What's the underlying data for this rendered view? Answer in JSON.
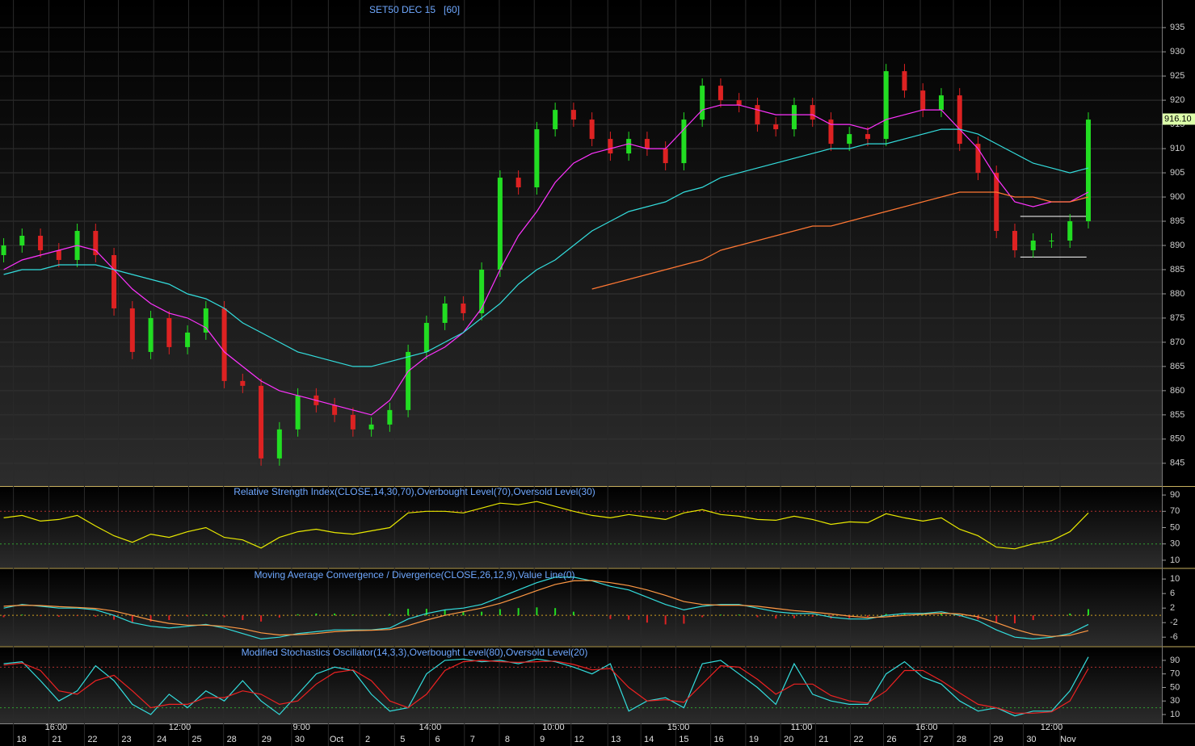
{
  "chart_data": [
    {
      "type": "candlestick",
      "title": "SET50 DEC 15   [60]",
      "xlim": [
        -0.2,
        63
      ],
      "ylim": [
        840.3,
        940.7
      ],
      "yticks": [
        845,
        850,
        855,
        860,
        865,
        870,
        875,
        880,
        885,
        890,
        895,
        900,
        905,
        910,
        915,
        920,
        925,
        930,
        935
      ],
      "grid": true,
      "up_color": "#22dd22",
      "down_color": "#dd2222",
      "open": [
        888,
        890,
        892,
        889,
        887,
        893,
        888,
        877,
        868,
        875,
        869,
        872,
        877,
        862,
        861,
        846,
        852,
        859,
        857,
        855,
        852,
        853,
        856,
        868,
        874,
        878,
        876,
        885,
        904,
        902,
        914,
        918,
        916,
        912,
        909,
        912,
        910,
        907,
        916,
        923,
        920,
        919,
        915,
        914,
        919,
        916,
        911,
        913,
        912,
        926,
        922,
        918,
        921,
        911,
        905,
        893,
        889,
        891,
        891,
        895
      ],
      "high": [
        891.5,
        893.5,
        893.5,
        890.5,
        894.5,
        894.5,
        889.5,
        878.5,
        876.5,
        876.5,
        873.5,
        878.5,
        878.5,
        863.5,
        862.5,
        853.5,
        860.5,
        860.5,
        858.5,
        856.5,
        854.5,
        857.5,
        869.5,
        875.5,
        879.5,
        879.5,
        886.5,
        905.5,
        905.5,
        915.5,
        919.5,
        919.5,
        917.5,
        913.5,
        913.5,
        913.5,
        911.5,
        917.5,
        924.5,
        924.5,
        921.5,
        920.5,
        916.5,
        920.5,
        920.5,
        917.5,
        914.5,
        914.5,
        927.5,
        927.5,
        923.5,
        922.5,
        922.5,
        912.5,
        906.5,
        894.5,
        892.5,
        892.5,
        896.5,
        917.5
      ],
      "low": [
        886.5,
        888.5,
        887.5,
        885.5,
        885.5,
        886.5,
        875.5,
        866.5,
        866.5,
        867.5,
        867.5,
        870.5,
        860.5,
        859.5,
        844.5,
        844.5,
        850.5,
        855.5,
        853.5,
        850.5,
        850.5,
        851.5,
        854.5,
        866.5,
        872.5,
        874.5,
        874.5,
        883.5,
        900.5,
        900.5,
        912.5,
        914.5,
        910.5,
        907.5,
        907.5,
        908.5,
        905.5,
        905.5,
        914.5,
        918.5,
        917.5,
        913.5,
        912.5,
        912.5,
        914.5,
        909.5,
        909.5,
        910.5,
        910.5,
        920.5,
        916.5,
        916.5,
        909.5,
        903.5,
        891.5,
        887.5,
        887.5,
        889.5,
        889.5,
        893.5
      ],
      "close": [
        890,
        892,
        889,
        887,
        893,
        888,
        877,
        868,
        875,
        869,
        872,
        877,
        862,
        861,
        846,
        852,
        859,
        857,
        855,
        852,
        853,
        856,
        868,
        874,
        878,
        876,
        885,
        904,
        902,
        914,
        918,
        916,
        912,
        909,
        912,
        910,
        907,
        916,
        923,
        920,
        919,
        915,
        914,
        919,
        916,
        911,
        913,
        912,
        926,
        922,
        918,
        921,
        911,
        905,
        893,
        889,
        891,
        891,
        895,
        916
      ],
      "series": [
        {
          "color": "#ff33ff",
          "values": [
            885,
            887,
            888,
            889,
            890,
            889,
            885,
            881,
            878,
            876,
            875,
            873,
            868,
            865,
            862,
            860,
            859,
            858,
            857,
            856,
            855,
            858,
            864,
            867,
            869,
            872,
            877,
            885,
            892,
            897,
            903,
            907,
            909,
            910,
            911,
            910,
            910,
            914,
            918,
            919,
            919,
            918,
            917,
            917,
            917,
            915,
            915,
            914,
            916,
            917,
            918,
            918,
            914,
            910,
            904,
            899,
            898,
            899,
            899,
            901
          ]
        },
        {
          "color": "#33dddd",
          "values": [
            884,
            885,
            885,
            886,
            886,
            886,
            885,
            884,
            883,
            882,
            880,
            879,
            877,
            874,
            872,
            870,
            868,
            867,
            866,
            865,
            865,
            866,
            867,
            868,
            870,
            872,
            875,
            878,
            882,
            885,
            887,
            890,
            893,
            895,
            897,
            898,
            899,
            901,
            902,
            904,
            905,
            906,
            907,
            908,
            909,
            910,
            910,
            911,
            911,
            912,
            913,
            914,
            914,
            913,
            911,
            909,
            907,
            906,
            905,
            906
          ]
        },
        {
          "color": "#ff7733",
          "values": [
            null,
            null,
            null,
            null,
            null,
            null,
            null,
            null,
            null,
            null,
            null,
            null,
            null,
            null,
            null,
            null,
            null,
            null,
            null,
            null,
            null,
            null,
            null,
            null,
            null,
            null,
            null,
            null,
            null,
            null,
            null,
            null,
            881,
            882,
            883,
            884,
            885,
            886,
            887,
            889,
            890,
            891,
            892,
            893,
            894,
            894,
            895,
            896,
            897,
            898,
            899,
            900,
            901,
            901,
            901,
            900,
            900,
            899,
            899,
            900
          ]
        }
      ],
      "levels": [
        {
          "value": 887.6,
          "color": "#ffffff"
        },
        {
          "value": 896,
          "color": "#ffffff"
        }
      ],
      "last_price": {
        "value": 916.1,
        "label": "916.10"
      }
    },
    {
      "type": "line",
      "title": "Relative Strength Index(CLOSE,14,30,70),Overbought Level(70),Oversold Level(30)",
      "xlim": [
        -0.2,
        63
      ],
      "ylim": [
        1,
        100
      ],
      "yticks": [
        10,
        30,
        50,
        70,
        90
      ],
      "series": [
        {
          "color": "#e8e800",
          "values": [
            62,
            65,
            58,
            60,
            65,
            52,
            40,
            32,
            42,
            38,
            45,
            50,
            38,
            35,
            25,
            38,
            45,
            48,
            44,
            42,
            46,
            50,
            68,
            70,
            70,
            68,
            74,
            80,
            78,
            82,
            76,
            70,
            65,
            62,
            66,
            63,
            60,
            68,
            72,
            66,
            64,
            60,
            59,
            64,
            60,
            54,
            57,
            56,
            67,
            62,
            58,
            62,
            48,
            40,
            26,
            24,
            30,
            34,
            45,
            68
          ]
        }
      ],
      "levels": [
        {
          "value": 70,
          "color": "#b03030"
        },
        {
          "value": 30,
          "color": "#30a030"
        }
      ]
    },
    {
      "type": "combo",
      "title": "Moving Average Convergence / Divergence(CLOSE,26,12,9),Value Line(0)",
      "xlim": [
        -0.2,
        63
      ],
      "ylim": [
        -8.4,
        12.7
      ],
      "yticks": [
        10,
        6,
        2,
        -2,
        -6
      ],
      "series": [
        {
          "color": "#33dddd",
          "values": [
            2,
            3,
            2.5,
            2,
            2,
            1.5,
            0,
            -2,
            -3,
            -3.5,
            -3,
            -2.5,
            -3.5,
            -5,
            -6.5,
            -6,
            -5,
            -4.5,
            -4,
            -4,
            -4,
            -3.5,
            -1,
            0.5,
            1.5,
            2,
            3,
            5,
            7,
            9,
            10.5,
            10.5,
            9.5,
            8,
            7,
            5,
            3,
            1.5,
            2.5,
            3,
            3,
            2,
            1,
            0.5,
            0.5,
            -0.5,
            -1,
            -1,
            0,
            0.5,
            0.5,
            1,
            0,
            -1.5,
            -4,
            -6,
            -6.5,
            -6,
            -5,
            -2.5
          ]
        },
        {
          "color": "#ff9944",
          "values": [
            2.5,
            2.8,
            2.7,
            2.4,
            2.2,
            1.9,
            1.2,
            0,
            -1.3,
            -2.2,
            -2.7,
            -2.7,
            -3,
            -3.7,
            -4.8,
            -5.4,
            -5.3,
            -5,
            -4.5,
            -4.2,
            -4.1,
            -3.9,
            -2.8,
            -1.3,
            0,
            1,
            2,
            3.3,
            5,
            6.8,
            8.5,
            9.5,
            9.6,
            9,
            8.2,
            7,
            5.5,
            3.8,
            3,
            2.8,
            2.8,
            2.5,
            1.9,
            1.3,
            0.9,
            0.4,
            -0.2,
            -0.6,
            -0.4,
            0,
            0.3,
            0.6,
            0.4,
            -0.4,
            -2,
            -3.8,
            -5.2,
            -5.8,
            -5.5,
            -4.2
          ]
        }
      ],
      "histogram": {
        "up_color": "#22dd22",
        "down_color": "#dd2222",
        "values": [
          -0.5,
          0.2,
          -0.2,
          -0.4,
          -0.2,
          -0.4,
          -1.2,
          -2,
          -1.7,
          -1.3,
          -0.3,
          0.2,
          -0.5,
          -1.3,
          -1.7,
          -0.6,
          0.3,
          0.5,
          0.5,
          0.2,
          0.1,
          0.4,
          1.8,
          1.8,
          1.5,
          1,
          1,
          1.7,
          2,
          2.2,
          2,
          1,
          -0.1,
          -1,
          -1.2,
          -2,
          -2.5,
          -2.3,
          -0.5,
          0.2,
          0.2,
          -0.5,
          -0.9,
          -0.8,
          -0.4,
          -0.9,
          -0.8,
          -0.4,
          0.4,
          0.5,
          0.2,
          0.4,
          -0.4,
          -1.1,
          -2,
          -2.2,
          -1.3,
          -0.2,
          0.5,
          1.7
        ]
      },
      "levels": [
        {
          "value": 0,
          "color": "#d0a020"
        }
      ]
    },
    {
      "type": "line",
      "title": "Modified Stochastics Oscillator(14,3,3),Overbought Level(80),Oversold Level(20)",
      "xlim": [
        -0.2,
        63
      ],
      "ylim": [
        -3.1,
        109
      ],
      "yticks": [
        10,
        30,
        50,
        70,
        90
      ],
      "series": [
        {
          "color": "#33dddd",
          "values": [
            85,
            88,
            60,
            30,
            45,
            82,
            60,
            25,
            10,
            40,
            20,
            45,
            30,
            60,
            30,
            10,
            40,
            70,
            80,
            75,
            40,
            15,
            20,
            70,
            90,
            92,
            88,
            90,
            85,
            92,
            88,
            80,
            70,
            85,
            15,
            30,
            35,
            20,
            85,
            90,
            70,
            50,
            25,
            85,
            40,
            30,
            25,
            25,
            70,
            88,
            65,
            55,
            30,
            15,
            20,
            8,
            15,
            15,
            45,
            95
          ]
        },
        {
          "color": "#ee2222",
          "values": [
            83,
            86,
            75,
            45,
            40,
            60,
            68,
            45,
            20,
            25,
            25,
            35,
            35,
            45,
            40,
            25,
            30,
            55,
            72,
            76,
            60,
            30,
            20,
            40,
            75,
            88,
            90,
            88,
            87,
            88,
            89,
            84,
            76,
            78,
            50,
            30,
            32,
            28,
            55,
            82,
            80,
            62,
            40,
            55,
            55,
            38,
            30,
            27,
            45,
            75,
            75,
            60,
            42,
            25,
            20,
            12,
            12,
            14,
            30,
            78
          ]
        }
      ],
      "levels": [
        {
          "value": 80,
          "color": "#b03030"
        },
        {
          "value": 20,
          "color": "#30a030"
        }
      ],
      "xticks": [
        {
          "value": 0.97,
          "label": "18"
        },
        {
          "value": 2.9,
          "label": "21"
        },
        {
          "value": 4.83,
          "label": "22"
        },
        {
          "value": 6.68,
          "label": "23"
        },
        {
          "value": 8.6,
          "label": "24"
        },
        {
          "value": 10.5,
          "label": "25"
        },
        {
          "value": 12.4,
          "label": "28"
        },
        {
          "value": 14.3,
          "label": "29"
        },
        {
          "value": 16.1,
          "label": "30"
        },
        {
          "value": 18.1,
          "label": "Oct"
        },
        {
          "value": 19.8,
          "label": "2"
        },
        {
          "value": 21.7,
          "label": "5"
        },
        {
          "value": 23.6,
          "label": "6"
        },
        {
          "value": 25.5,
          "label": "7"
        },
        {
          "value": 27.4,
          "label": "8"
        },
        {
          "value": 29.3,
          "label": "9"
        },
        {
          "value": 31.3,
          "label": "12"
        },
        {
          "value": 33.3,
          "label": "13"
        },
        {
          "value": 35.1,
          "label": "14"
        },
        {
          "value": 37,
          "label": "15"
        },
        {
          "value": 38.9,
          "label": "16"
        },
        {
          "value": 40.8,
          "label": "19"
        },
        {
          "value": 42.7,
          "label": "20"
        },
        {
          "value": 44.6,
          "label": "21"
        },
        {
          "value": 46.5,
          "label": "22"
        },
        {
          "value": 48.3,
          "label": "26"
        },
        {
          "value": 50.3,
          "label": "27"
        },
        {
          "value": 52.1,
          "label": "28"
        },
        {
          "value": 54.1,
          "label": "29"
        },
        {
          "value": 55.9,
          "label": "30"
        },
        {
          "value": 57.9,
          "label": "Nov"
        }
      ],
      "xticks2": [
        {
          "value": 2.85,
          "label": "16:00"
        },
        {
          "value": 9.58,
          "label": "12:00"
        },
        {
          "value": 16.2,
          "label": "9:00"
        },
        {
          "value": 23.2,
          "label": "14:00"
        },
        {
          "value": 29.9,
          "label": "10:00"
        },
        {
          "value": 36.7,
          "label": "15:00"
        },
        {
          "value": 43.4,
          "label": "11:00"
        },
        {
          "value": 50.2,
          "label": "16:00"
        },
        {
          "value": 57,
          "label": "12:00"
        }
      ]
    }
  ]
}
